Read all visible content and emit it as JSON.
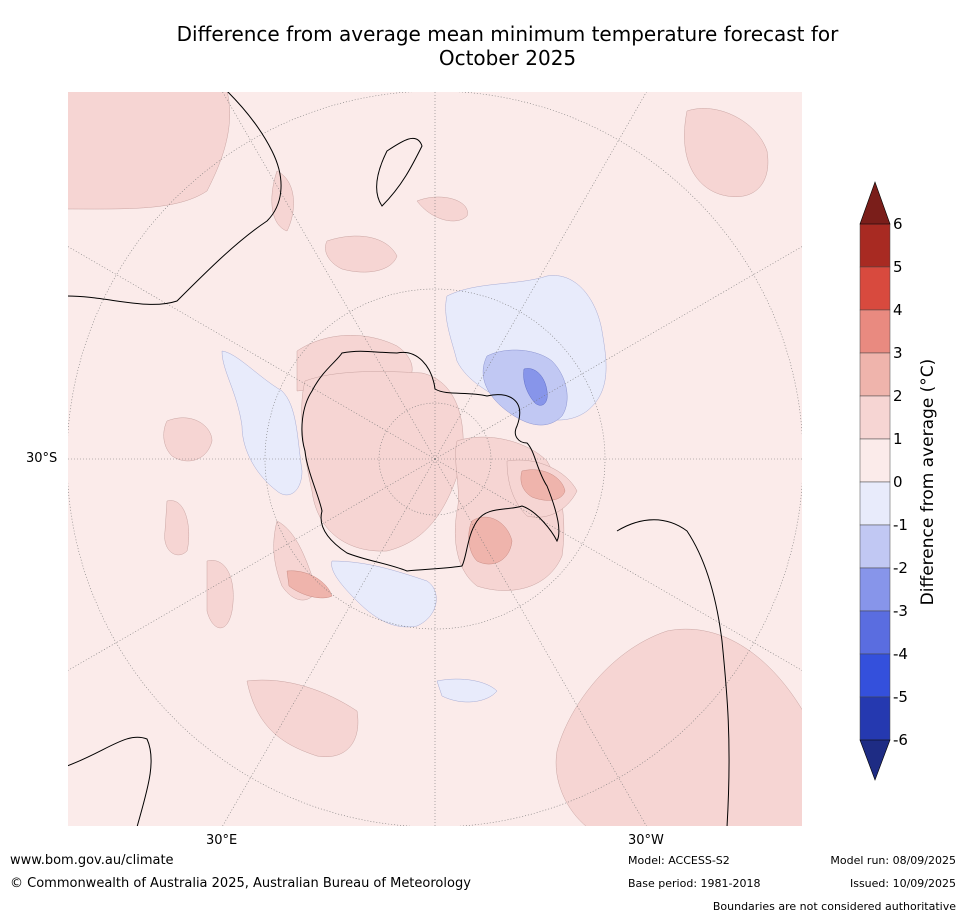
{
  "title": {
    "line1": "Difference from average mean minimum temperature forecast for",
    "line2": "October 2025"
  },
  "map": {
    "projection": "south polar stereographic",
    "lat_labels": [
      "30°S"
    ],
    "lon_labels": [
      "30°E",
      "30°W"
    ]
  },
  "colorbar": {
    "label": "Difference from average (°C)",
    "ticks": [
      "6",
      "5",
      "4",
      "3",
      "2",
      "1",
      "0",
      "-1",
      "-2",
      "-3",
      "-4",
      "-5",
      "-6"
    ],
    "colors": {
      "gt6": "#7a1e1a",
      "5to6": "#a82a22",
      "4to5": "#d84a3e",
      "3to4": "#e98a80",
      "2to3": "#efb4ac",
      "1to2": "#f6d5d3",
      "0to1": "#fbebea",
      "m1to0": "#e8ebfb",
      "m2tom1": "#c1c8f3",
      "m3tom2": "#8795ea",
      "m4tom3": "#5a6de0",
      "m5tom4": "#3450dc",
      "m6tom5": "#2539b0",
      "ltm6": "#1e2c84"
    }
  },
  "footer": {
    "website": "www.bom.gov.au/climate",
    "copyright": "© Commonwealth of Australia 2025, Australian Bureau of Meteorology",
    "model": "Model: ACCESS-S2",
    "base_period": "Base period: 1981-2018",
    "model_run": "Model run: 08/09/2025",
    "issued": "Issued: 10/09/2025",
    "disclaimer": "Boundaries are not considered authoritative"
  }
}
